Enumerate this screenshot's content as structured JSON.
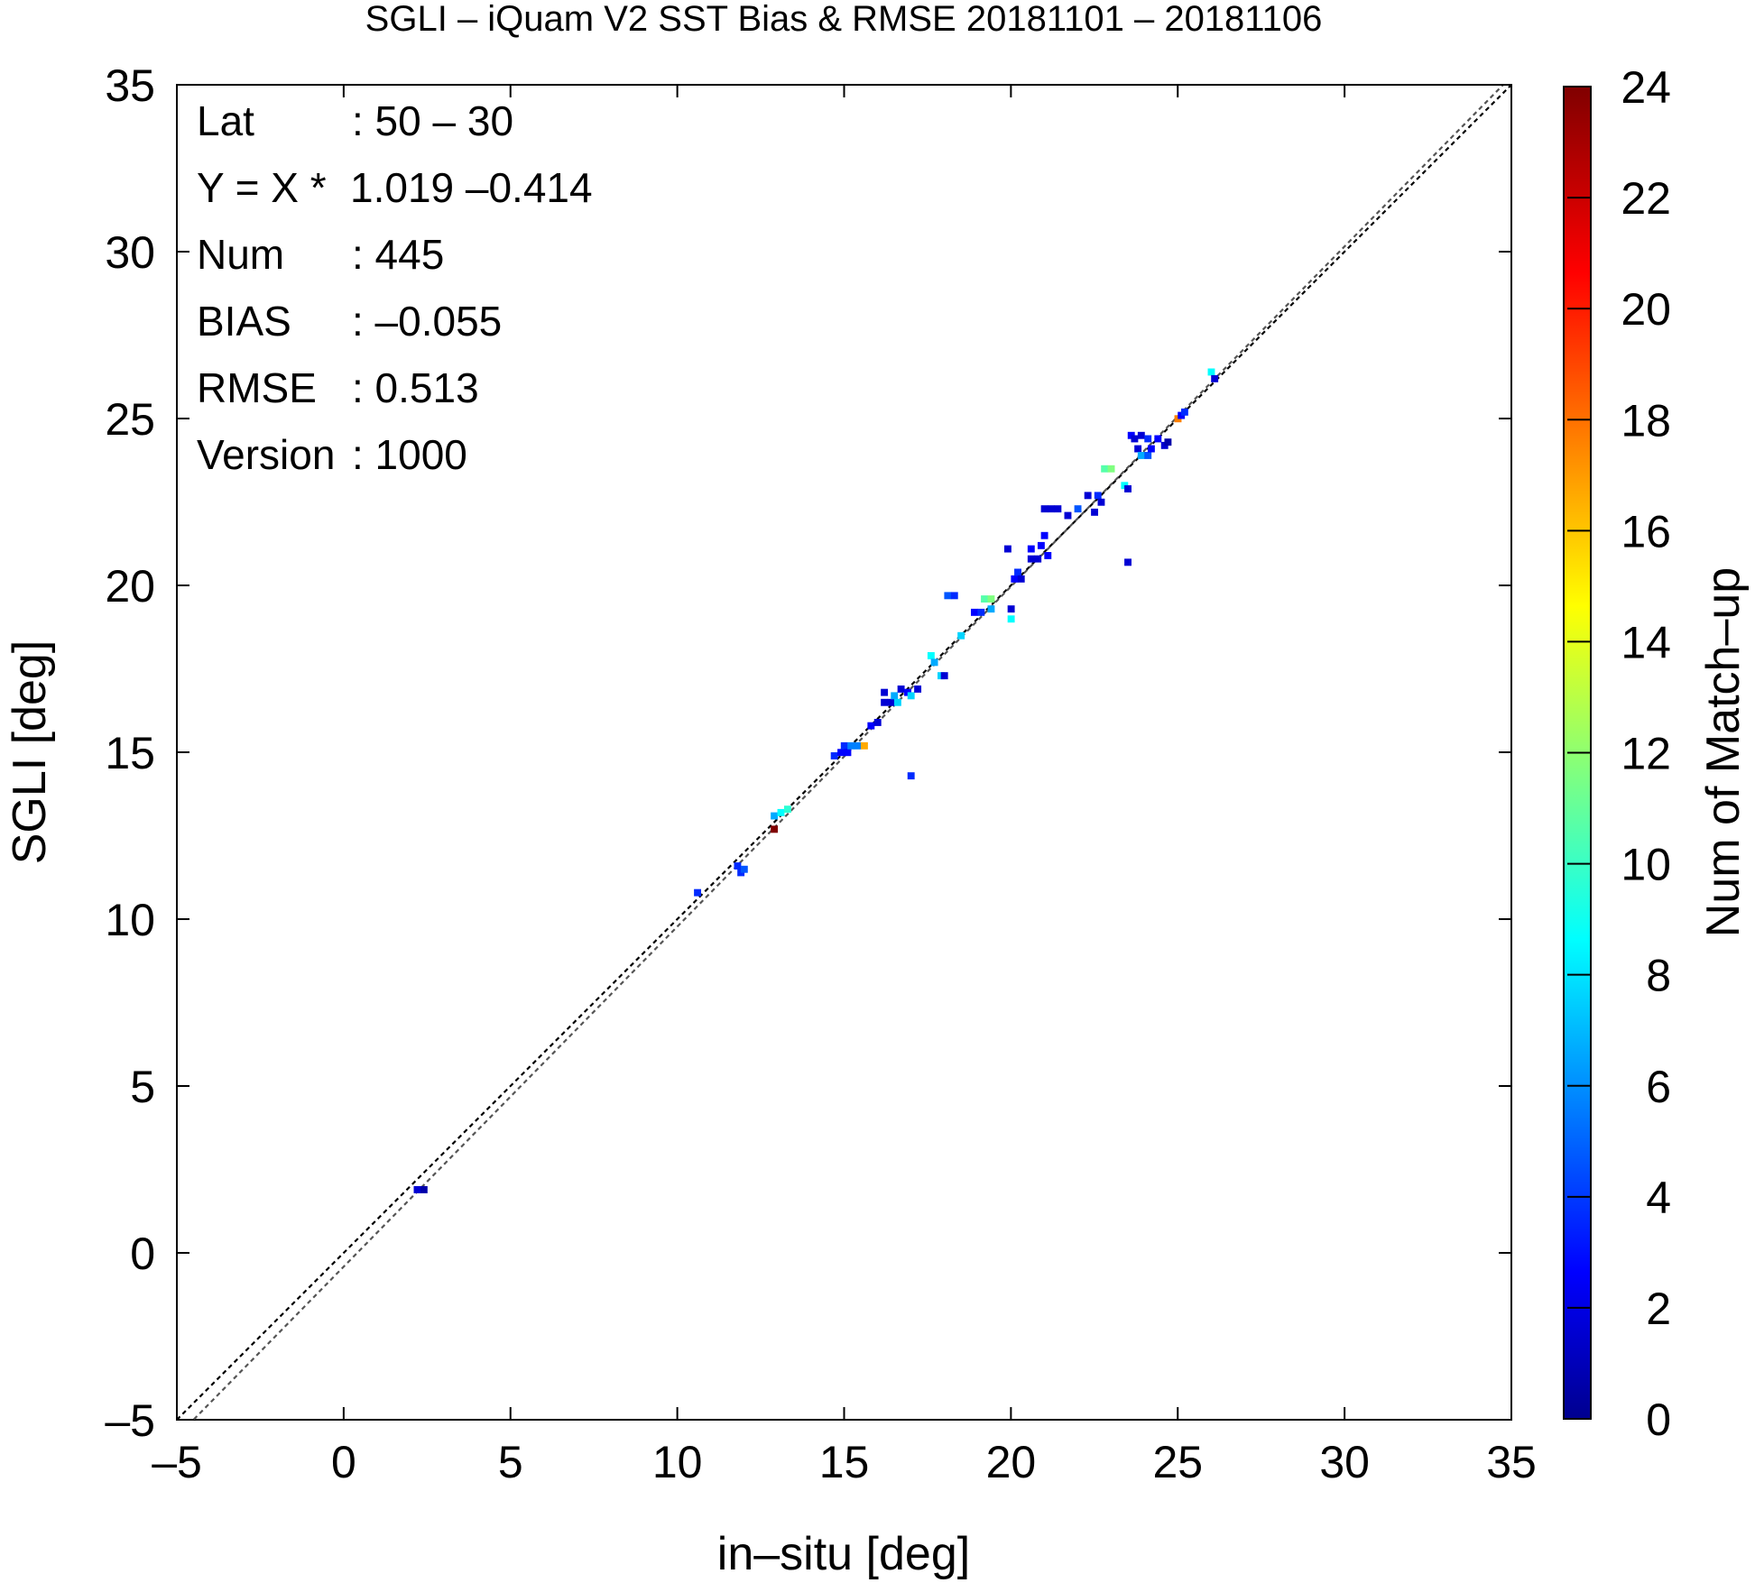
{
  "chart_data": {
    "type": "heatmap",
    "title": "SGLI – iQuam V2 SST Bias & RMSE 20181101 – 20181106",
    "xlabel": "in–situ [deg]",
    "ylabel": "SGLI [deg]",
    "xlim": [
      -5,
      35
    ],
    "ylim": [
      -5,
      35
    ],
    "xticks": [
      "–5",
      "0",
      "5",
      "10",
      "15",
      "20",
      "25",
      "30",
      "35"
    ],
    "yticks": [
      "–5",
      "0",
      "5",
      "10",
      "15",
      "20",
      "25",
      "30",
      "35"
    ],
    "colorbar": {
      "label": "Num of Match–up",
      "range": [
        0,
        24
      ],
      "ticks": [
        "0",
        "2",
        "4",
        "6",
        "8",
        "10",
        "12",
        "14",
        "16",
        "18",
        "20",
        "22",
        "24"
      ]
    },
    "stats": [
      {
        "key": "Lat",
        "value": ": 50 – 30"
      },
      {
        "key": "Y = X *",
        "value": "1.019 –0.414"
      },
      {
        "key": "Num",
        "value": ": 445"
      },
      {
        "key": "BIAS",
        "value": ": –0.055"
      },
      {
        "key": "RMSE",
        "value": ": 0.513"
      },
      {
        "key": "Version",
        "value": ": 1000"
      }
    ],
    "fit": {
      "slope": 1.019,
      "intercept": -0.414
    },
    "reference_line": {
      "slope": 1,
      "intercept": 0
    },
    "cells": [
      [
        2.1,
        1.8,
        2
      ],
      [
        2.3,
        1.8,
        1
      ],
      [
        10.5,
        10.7,
        4
      ],
      [
        11.7,
        11.5,
        4
      ],
      [
        11.8,
        11.3,
        4
      ],
      [
        11.9,
        11.4,
        5
      ],
      [
        12.8,
        12.6,
        24
      ],
      [
        12.8,
        13.0,
        7
      ],
      [
        13.0,
        13.1,
        9
      ],
      [
        13.2,
        13.2,
        10
      ],
      [
        14.6,
        14.8,
        4
      ],
      [
        14.8,
        14.9,
        3
      ],
      [
        14.9,
        15.1,
        4
      ],
      [
        15.0,
        14.9,
        3
      ],
      [
        15.1,
        15.1,
        6
      ],
      [
        15.3,
        15.1,
        6
      ],
      [
        15.5,
        15.1,
        17
      ],
      [
        15.7,
        15.7,
        3
      ],
      [
        15.9,
        15.8,
        2
      ],
      [
        16.1,
        16.4,
        2
      ],
      [
        16.1,
        16.7,
        2
      ],
      [
        16.3,
        16.4,
        2
      ],
      [
        16.4,
        16.6,
        7
      ],
      [
        16.5,
        16.4,
        8
      ],
      [
        16.6,
        16.8,
        2
      ],
      [
        16.8,
        16.7,
        3
      ],
      [
        16.9,
        16.6,
        8
      ],
      [
        17.1,
        16.8,
        2
      ],
      [
        16.9,
        14.2,
        4
      ],
      [
        17.5,
        17.8,
        9
      ],
      [
        17.6,
        17.6,
        7
      ],
      [
        17.8,
        17.2,
        8
      ],
      [
        17.9,
        17.2,
        2
      ],
      [
        18.0,
        19.6,
        5
      ],
      [
        18.2,
        19.6,
        4
      ],
      [
        18.4,
        18.4,
        8
      ],
      [
        18.8,
        19.1,
        3
      ],
      [
        19.0,
        19.1,
        4
      ],
      [
        19.1,
        19.5,
        11
      ],
      [
        19.3,
        19.5,
        12
      ],
      [
        19.3,
        19.2,
        7
      ],
      [
        19.9,
        18.9,
        9
      ],
      [
        19.9,
        19.2,
        2
      ],
      [
        19.8,
        21.0,
        2
      ],
      [
        20.0,
        20.1,
        3
      ],
      [
        20.1,
        20.3,
        4
      ],
      [
        20.2,
        20.1,
        2
      ],
      [
        20.5,
        21.0,
        3
      ],
      [
        20.5,
        20.7,
        2
      ],
      [
        20.7,
        20.7,
        2
      ],
      [
        20.8,
        21.1,
        3
      ],
      [
        20.9,
        21.4,
        3
      ],
      [
        20.9,
        22.2,
        2
      ],
      [
        21.0,
        20.8,
        3
      ],
      [
        21.1,
        22.2,
        2
      ],
      [
        21.3,
        22.2,
        2
      ],
      [
        21.6,
        22.0,
        2
      ],
      [
        21.9,
        22.2,
        5
      ],
      [
        22.2,
        22.6,
        2
      ],
      [
        22.5,
        22.6,
        4
      ],
      [
        22.6,
        22.4,
        2
      ],
      [
        22.4,
        22.1,
        2
      ],
      [
        22.7,
        23.4,
        11
      ],
      [
        22.9,
        23.4,
        12
      ],
      [
        23.3,
        22.9,
        9
      ],
      [
        23.4,
        22.8,
        2
      ],
      [
        23.4,
        20.6,
        2
      ],
      [
        23.5,
        24.4,
        3
      ],
      [
        23.6,
        24.3,
        2
      ],
      [
        23.7,
        24.0,
        2
      ],
      [
        23.8,
        24.4,
        2
      ],
      [
        23.8,
        23.8,
        7
      ],
      [
        24.0,
        23.8,
        5
      ],
      [
        24.0,
        24.3,
        4
      ],
      [
        24.1,
        24.0,
        3
      ],
      [
        24.3,
        24.3,
        3
      ],
      [
        24.5,
        24.1,
        2
      ],
      [
        24.6,
        24.2,
        1
      ],
      [
        24.9,
        24.9,
        18
      ],
      [
        25.0,
        25.0,
        3
      ],
      [
        25.1,
        25.1,
        4
      ],
      [
        25.9,
        26.3,
        9
      ],
      [
        26.0,
        26.1,
        2
      ]
    ]
  }
}
